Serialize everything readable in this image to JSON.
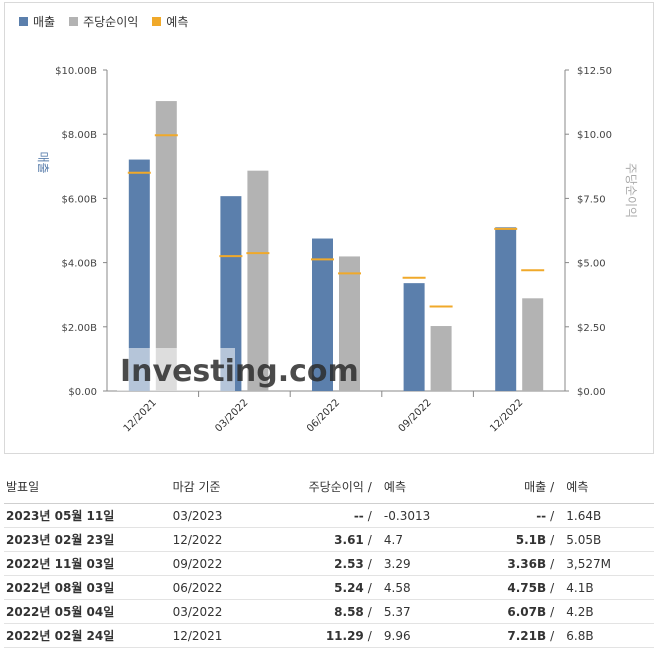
{
  "legend": {
    "revenue": "매출",
    "eps": "주당순이익",
    "forecast": "예측"
  },
  "colors": {
    "revenue": "#5b7fac",
    "eps": "#b3b3b3",
    "forecast": "#f0a92a",
    "red": "#d0021b",
    "blue": "#1e8ad6"
  },
  "chart_data": {
    "type": "bar",
    "categories": [
      "12/2021",
      "03/2022",
      "06/2022",
      "09/2022",
      "12/2022"
    ],
    "series": [
      {
        "name": "매출",
        "axis": "left",
        "values": [
          7.21,
          6.07,
          4.75,
          3.36,
          5.1
        ],
        "forecast": [
          6.8,
          4.2,
          4.1,
          3.527,
          5.05
        ]
      },
      {
        "name": "주당순이익",
        "axis": "right",
        "values": [
          11.29,
          8.58,
          5.24,
          2.53,
          3.61
        ],
        "forecast": [
          9.96,
          5.37,
          4.58,
          3.29,
          4.7
        ]
      }
    ],
    "ylabel_left": "매출",
    "ylabel_right": "주당순이익",
    "ylim_left": [
      0,
      10
    ],
    "ylim_right": [
      0,
      12.5
    ],
    "yticks_left": [
      "$0.00",
      "$2.00B",
      "$4.00B",
      "$6.00B",
      "$8.00B",
      "$10.00B"
    ],
    "yticks_right": [
      "$0.00",
      "$2.50",
      "$5.00",
      "$7.50",
      "$10.00",
      "$12.50"
    ],
    "watermark": "Investing.com",
    "grid": false
  },
  "table": {
    "headers": {
      "date": "발표일",
      "period": "마감 기준",
      "eps": "주당순이익",
      "sep": "/",
      "eps_fc": "예측",
      "rev": "매출",
      "rev_fc": "예측"
    },
    "rows": [
      {
        "date": "2023년 05월 11일",
        "period": "03/2023",
        "eps": "--",
        "eps_color": "plain",
        "eps_fc": "-0.3013",
        "rev": "--",
        "rev_color": "plain",
        "rev_fc": "1.64B"
      },
      {
        "date": "2023년 02월 23일",
        "period": "12/2022",
        "eps": "3.61",
        "eps_color": "blue",
        "eps_fc": "4.7",
        "rev": "5.1B",
        "rev_color": "red",
        "rev_fc": "5.05B"
      },
      {
        "date": "2022년 11월 03일",
        "period": "09/2022",
        "eps": "2.53",
        "eps_color": "blue",
        "eps_fc": "3.29",
        "rev": "3.36B",
        "rev_color": "blue",
        "rev_fc": "3,527M"
      },
      {
        "date": "2022년 08월 03일",
        "period": "06/2022",
        "eps": "5.24",
        "eps_color": "red",
        "eps_fc": "4.58",
        "rev": "4.75B",
        "rev_color": "red",
        "rev_fc": "4.1B"
      },
      {
        "date": "2022년 05월 04일",
        "period": "03/2022",
        "eps": "8.58",
        "eps_color": "red",
        "eps_fc": "5.37",
        "rev": "6.07B",
        "rev_color": "red",
        "rev_fc": "4.2B"
      },
      {
        "date": "2022년 02월 24일",
        "period": "12/2021",
        "eps": "11.29",
        "eps_color": "red",
        "eps_fc": "9.96",
        "rev": "7.21B",
        "rev_color": "red",
        "rev_fc": "6.8B"
      }
    ]
  }
}
